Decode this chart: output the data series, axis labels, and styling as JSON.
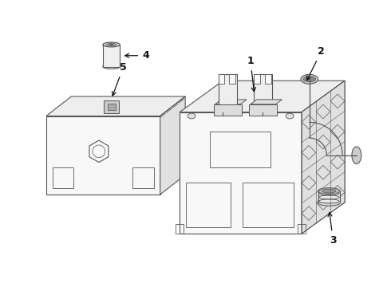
{
  "bg_color": "#ffffff",
  "line_color": "#555555",
  "label_color": "#111111",
  "lw": 0.8
}
